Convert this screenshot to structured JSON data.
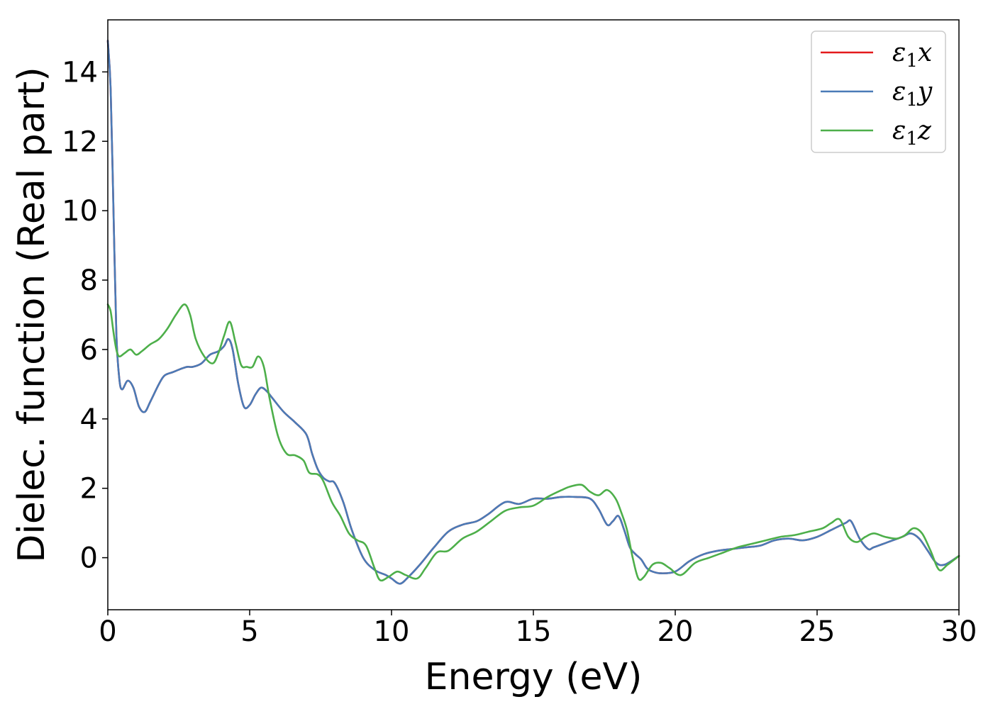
{
  "chart_data": {
    "type": "line",
    "xlabel": "Energy (eV)",
    "ylabel": "Dielec. function (Real part)",
    "xlim": [
      0,
      30
    ],
    "ylim": [
      -1.5,
      15.5
    ],
    "xticks": [
      0,
      5,
      10,
      15,
      20,
      25,
      30
    ],
    "yticks": [
      0,
      2,
      4,
      6,
      8,
      10,
      12,
      14
    ],
    "grid": false,
    "legend_position": "top-right",
    "series": [
      {
        "name": "ε1x",
        "legend": {
          "symbol": "ε",
          "sub": "1",
          "var": "x"
        },
        "color": "#e41a1c",
        "x": [
          0.0,
          0.1,
          0.2,
          0.3,
          0.4,
          0.5,
          0.7,
          0.9,
          1.1,
          1.3,
          1.5,
          1.8,
          2.0,
          2.3,
          2.6,
          2.8,
          3.0,
          3.3,
          3.6,
          3.9,
          4.1,
          4.25,
          4.4,
          4.6,
          4.8,
          5.0,
          5.2,
          5.4,
          5.6,
          5.8,
          6.2,
          6.6,
          7.0,
          7.2,
          7.4,
          7.6,
          7.8,
          8.0,
          8.3,
          8.6,
          9.0,
          9.4,
          9.8,
          10.0,
          10.3,
          10.6,
          11.0,
          11.5,
          12.0,
          12.5,
          13.0,
          13.4,
          14.0,
          14.5,
          15.0,
          15.5,
          16.0,
          16.5,
          17.0,
          17.3,
          17.6,
          17.8,
          18.0,
          18.2,
          18.4,
          18.6,
          18.8,
          19.0,
          19.2,
          19.5,
          20.0,
          20.5,
          21.0,
          21.5,
          22.0,
          22.5,
          23.0,
          23.5,
          24.0,
          24.5,
          25.0,
          25.5,
          26.0,
          26.2,
          26.5,
          26.8,
          27.0,
          27.5,
          28.0,
          28.3,
          28.6,
          28.9,
          29.2,
          29.5,
          30.0
        ],
        "y": [
          14.9,
          13.5,
          10.0,
          6.5,
          5.2,
          4.85,
          5.1,
          4.9,
          4.35,
          4.2,
          4.5,
          5.0,
          5.25,
          5.35,
          5.45,
          5.5,
          5.5,
          5.6,
          5.85,
          5.95,
          6.1,
          6.3,
          6.0,
          5.0,
          4.35,
          4.4,
          4.7,
          4.9,
          4.8,
          4.6,
          4.2,
          3.9,
          3.55,
          3.0,
          2.55,
          2.3,
          2.2,
          2.15,
          1.6,
          0.8,
          0.0,
          -0.35,
          -0.5,
          -0.6,
          -0.75,
          -0.55,
          -0.2,
          0.3,
          0.75,
          0.95,
          1.05,
          1.25,
          1.6,
          1.55,
          1.7,
          1.7,
          1.75,
          1.75,
          1.7,
          1.4,
          0.95,
          1.05,
          1.2,
          0.8,
          0.3,
          0.1,
          -0.05,
          -0.3,
          -0.4,
          -0.45,
          -0.4,
          -0.1,
          0.1,
          0.2,
          0.25,
          0.3,
          0.35,
          0.5,
          0.55,
          0.5,
          0.6,
          0.8,
          1.0,
          1.05,
          0.55,
          0.25,
          0.3,
          0.45,
          0.6,
          0.7,
          0.55,
          0.2,
          -0.15,
          -0.2,
          0.05
        ]
      },
      {
        "name": "ε1y",
        "legend": {
          "symbol": "ε",
          "sub": "1",
          "var": "y"
        },
        "color": "#4a7bb7",
        "x": [
          0.0,
          0.1,
          0.2,
          0.3,
          0.4,
          0.5,
          0.7,
          0.9,
          1.1,
          1.3,
          1.5,
          1.8,
          2.0,
          2.3,
          2.6,
          2.8,
          3.0,
          3.3,
          3.6,
          3.9,
          4.1,
          4.25,
          4.4,
          4.6,
          4.8,
          5.0,
          5.2,
          5.4,
          5.6,
          5.8,
          6.2,
          6.6,
          7.0,
          7.2,
          7.4,
          7.6,
          7.8,
          8.0,
          8.3,
          8.6,
          9.0,
          9.4,
          9.8,
          10.0,
          10.3,
          10.6,
          11.0,
          11.5,
          12.0,
          12.5,
          13.0,
          13.4,
          14.0,
          14.5,
          15.0,
          15.5,
          16.0,
          16.5,
          17.0,
          17.3,
          17.6,
          17.8,
          18.0,
          18.2,
          18.4,
          18.6,
          18.8,
          19.0,
          19.2,
          19.5,
          20.0,
          20.5,
          21.0,
          21.5,
          22.0,
          22.5,
          23.0,
          23.5,
          24.0,
          24.5,
          25.0,
          25.5,
          26.0,
          26.2,
          26.5,
          26.8,
          27.0,
          27.5,
          28.0,
          28.3,
          28.6,
          28.9,
          29.2,
          29.5,
          30.0
        ],
        "y": [
          14.9,
          13.5,
          10.0,
          6.5,
          5.2,
          4.85,
          5.1,
          4.9,
          4.35,
          4.2,
          4.5,
          5.0,
          5.25,
          5.35,
          5.45,
          5.5,
          5.5,
          5.6,
          5.85,
          5.95,
          6.1,
          6.3,
          6.0,
          5.0,
          4.35,
          4.4,
          4.7,
          4.9,
          4.8,
          4.6,
          4.2,
          3.9,
          3.55,
          3.0,
          2.55,
          2.3,
          2.2,
          2.15,
          1.6,
          0.8,
          0.0,
          -0.35,
          -0.5,
          -0.6,
          -0.75,
          -0.55,
          -0.2,
          0.3,
          0.75,
          0.95,
          1.05,
          1.25,
          1.6,
          1.55,
          1.7,
          1.7,
          1.75,
          1.75,
          1.7,
          1.4,
          0.95,
          1.05,
          1.2,
          0.8,
          0.3,
          0.1,
          -0.05,
          -0.3,
          -0.4,
          -0.45,
          -0.4,
          -0.1,
          0.1,
          0.2,
          0.25,
          0.3,
          0.35,
          0.5,
          0.55,
          0.5,
          0.6,
          0.8,
          1.0,
          1.05,
          0.55,
          0.25,
          0.3,
          0.45,
          0.6,
          0.7,
          0.55,
          0.2,
          -0.15,
          -0.2,
          0.05
        ]
      },
      {
        "name": "ε1z",
        "legend": {
          "symbol": "ε",
          "sub": "1",
          "var": "z"
        },
        "color": "#4daf4a",
        "x": [
          0.0,
          0.1,
          0.2,
          0.3,
          0.4,
          0.6,
          0.8,
          1.0,
          1.2,
          1.5,
          1.8,
          2.1,
          2.4,
          2.7,
          2.9,
          3.1,
          3.4,
          3.7,
          3.9,
          4.1,
          4.3,
          4.5,
          4.7,
          4.9,
          5.1,
          5.3,
          5.5,
          5.7,
          6.0,
          6.3,
          6.6,
          6.9,
          7.1,
          7.4,
          7.6,
          7.9,
          8.2,
          8.5,
          8.8,
          9.1,
          9.4,
          9.6,
          9.9,
          10.2,
          10.5,
          10.9,
          11.2,
          11.6,
          12.0,
          12.5,
          13.0,
          13.5,
          14.0,
          14.5,
          15.0,
          15.5,
          16.0,
          16.3,
          16.7,
          17.0,
          17.3,
          17.6,
          17.9,
          18.1,
          18.3,
          18.5,
          18.7,
          18.9,
          19.2,
          19.5,
          19.8,
          20.2,
          20.7,
          21.2,
          21.7,
          22.2,
          22.7,
          23.2,
          23.7,
          24.2,
          24.7,
          25.2,
          25.5,
          25.8,
          26.1,
          26.4,
          26.7,
          27.0,
          27.4,
          27.8,
          28.1,
          28.4,
          28.7,
          29.0,
          29.3,
          29.6,
          30.0
        ],
        "y": [
          7.3,
          7.1,
          6.5,
          6.0,
          5.8,
          5.9,
          6.0,
          5.85,
          5.95,
          6.15,
          6.3,
          6.6,
          7.0,
          7.3,
          7.0,
          6.3,
          5.8,
          5.6,
          5.9,
          6.4,
          6.8,
          6.2,
          5.55,
          5.5,
          5.5,
          5.8,
          5.5,
          4.6,
          3.5,
          3.0,
          2.95,
          2.8,
          2.45,
          2.4,
          2.2,
          1.6,
          1.2,
          0.7,
          0.5,
          0.35,
          -0.3,
          -0.65,
          -0.55,
          -0.4,
          -0.5,
          -0.6,
          -0.3,
          0.15,
          0.2,
          0.55,
          0.75,
          1.05,
          1.35,
          1.45,
          1.5,
          1.75,
          1.95,
          2.05,
          2.1,
          1.9,
          1.8,
          1.95,
          1.7,
          1.3,
          0.8,
          0.0,
          -0.6,
          -0.55,
          -0.2,
          -0.15,
          -0.3,
          -0.5,
          -0.15,
          0.0,
          0.15,
          0.3,
          0.4,
          0.5,
          0.6,
          0.65,
          0.75,
          0.85,
          1.0,
          1.1,
          0.6,
          0.45,
          0.6,
          0.7,
          0.6,
          0.55,
          0.65,
          0.85,
          0.7,
          0.2,
          -0.35,
          -0.2,
          0.05
        ]
      }
    ]
  }
}
